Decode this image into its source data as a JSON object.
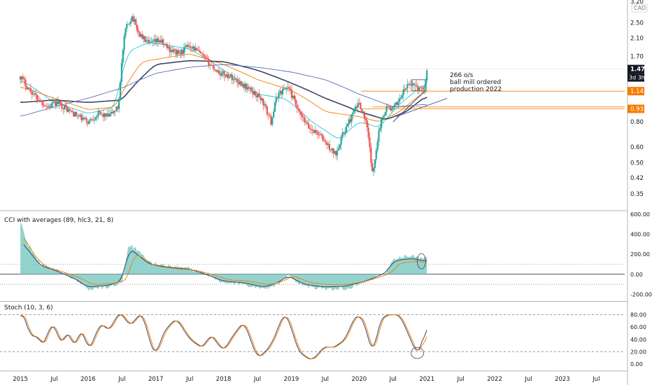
{
  "chart_data": [
    {
      "type": "candlestick",
      "pane": "price",
      "currency": "CAD",
      "y_scale": "log",
      "ylim": [
        0.3,
        3.2
      ],
      "y_ticks": [
        "3.20",
        "2.50",
        "2.10",
        "1.70",
        "1.15",
        "0.80",
        "0.60",
        "0.50",
        "0.42",
        "0.35"
      ],
      "last_price_label": "1.47",
      "countdown_label": "3d 3h",
      "level_labels": [
        {
          "text": "1.14",
          "value": 1.14,
          "color": "#f57c00"
        },
        {
          "text": "0.93",
          "value": 0.93,
          "color": "#f57c00"
        }
      ],
      "annotation_lines": [
        "266 o/s",
        "ball mill ordered",
        "production 2022"
      ],
      "colors": {
        "up": "#26a69a",
        "down": "#ef5350",
        "level": "#f57c00",
        "countdown_bg": "#131722"
      },
      "close_path": [
        [
          2015.0,
          1.35
        ],
        [
          2015.1,
          1.2
        ],
        [
          2015.25,
          1.05
        ],
        [
          2015.4,
          0.95
        ],
        [
          2015.55,
          1.0
        ],
        [
          2015.7,
          0.92
        ],
        [
          2015.85,
          0.85
        ],
        [
          2016.0,
          0.8
        ],
        [
          2016.15,
          0.88
        ],
        [
          2016.3,
          0.85
        ],
        [
          2016.45,
          0.95
        ],
        [
          2016.55,
          2.3
        ],
        [
          2016.65,
          2.7
        ],
        [
          2016.75,
          2.2
        ],
        [
          2016.9,
          1.95
        ],
        [
          2017.05,
          2.05
        ],
        [
          2017.2,
          1.85
        ],
        [
          2017.35,
          1.75
        ],
        [
          2017.5,
          1.95
        ],
        [
          2017.65,
          1.75
        ],
        [
          2017.8,
          1.55
        ],
        [
          2017.95,
          1.4
        ],
        [
          2018.1,
          1.35
        ],
        [
          2018.25,
          1.25
        ],
        [
          2018.4,
          1.15
        ],
        [
          2018.55,
          1.05
        ],
        [
          2018.7,
          0.8
        ],
        [
          2018.8,
          1.1
        ],
        [
          2018.95,
          1.2
        ],
        [
          2019.1,
          0.9
        ],
        [
          2019.25,
          0.75
        ],
        [
          2019.4,
          0.7
        ],
        [
          2019.55,
          0.6
        ],
        [
          2019.65,
          0.55
        ],
        [
          2019.75,
          0.68
        ],
        [
          2019.85,
          0.8
        ],
        [
          2020.0,
          1.0
        ],
        [
          2020.1,
          0.8
        ],
        [
          2020.2,
          0.42
        ],
        [
          2020.3,
          0.75
        ],
        [
          2020.4,
          0.95
        ],
        [
          2020.5,
          0.92
        ],
        [
          2020.6,
          1.05
        ],
        [
          2020.7,
          1.2
        ],
        [
          2020.8,
          1.25
        ],
        [
          2020.9,
          1.15
        ],
        [
          2020.98,
          1.25
        ],
        [
          2021.0,
          1.47
        ]
      ],
      "moving_averages": [
        {
          "color": "#26c6da",
          "points": [
            [
              2015.0,
              1.3
            ],
            [
              2015.5,
              1.0
            ],
            [
              2016.0,
              0.88
            ],
            [
              2016.4,
              0.95
            ],
            [
              2016.6,
              1.8
            ],
            [
              2016.9,
              2.0
            ],
            [
              2017.5,
              1.85
            ],
            [
              2018.0,
              1.45
            ],
            [
              2018.5,
              1.1
            ],
            [
              2018.9,
              1.05
            ],
            [
              2019.3,
              0.8
            ],
            [
              2019.7,
              0.65
            ],
            [
              2020.0,
              0.8
            ],
            [
              2020.3,
              0.75
            ],
            [
              2020.6,
              0.98
            ],
            [
              2021.0,
              1.25
            ]
          ]
        },
        {
          "color": "#f57c00",
          "points": [
            [
              2015.0,
              1.2
            ],
            [
              2015.5,
              1.05
            ],
            [
              2016.0,
              0.92
            ],
            [
              2016.4,
              0.95
            ],
            [
              2016.8,
              1.6
            ],
            [
              2017.5,
              1.75
            ],
            [
              2018.0,
              1.55
            ],
            [
              2018.5,
              1.3
            ],
            [
              2019.0,
              1.15
            ],
            [
              2019.5,
              0.9
            ],
            [
              2020.0,
              0.85
            ],
            [
              2020.3,
              0.8
            ],
            [
              2020.6,
              0.9
            ],
            [
              2021.0,
              1.15
            ]
          ]
        },
        {
          "color": "#3d4460",
          "points": [
            [
              2015.0,
              1.0
            ],
            [
              2015.5,
              1.03
            ],
            [
              2016.0,
              1.0
            ],
            [
              2016.5,
              1.03
            ],
            [
              2017.0,
              1.55
            ],
            [
              2017.5,
              1.62
            ],
            [
              2018.0,
              1.6
            ],
            [
              2018.5,
              1.45
            ],
            [
              2019.0,
              1.25
            ],
            [
              2019.5,
              1.05
            ],
            [
              2020.0,
              0.9
            ],
            [
              2020.4,
              0.82
            ],
            [
              2020.7,
              0.9
            ],
            [
              2021.0,
              1.08
            ]
          ]
        },
        {
          "color": "#5c6bc0",
          "points": [
            [
              2015.0,
              0.85
            ],
            [
              2015.5,
              0.95
            ],
            [
              2016.0,
              1.05
            ],
            [
              2016.5,
              1.18
            ],
            [
              2017.0,
              1.4
            ],
            [
              2017.5,
              1.5
            ],
            [
              2018.0,
              1.55
            ],
            [
              2018.5,
              1.5
            ],
            [
              2019.0,
              1.42
            ],
            [
              2019.5,
              1.3
            ],
            [
              2020.0,
              1.1
            ],
            [
              2020.5,
              0.95
            ],
            [
              2021.0,
              0.98
            ]
          ]
        }
      ],
      "trend_lines": [
        {
          "color": "#3d4460",
          "points": [
            [
              2020.5,
              0.8
            ],
            [
              2020.98,
              1.15
            ]
          ]
        },
        {
          "color": "#5c6bc0",
          "points": [
            [
              2020.55,
              0.85
            ],
            [
              2021.3,
              1.05
            ]
          ]
        }
      ]
    },
    {
      "type": "area",
      "pane": "cci",
      "title": "CCI with averages (89, hlc3, 21, 8)",
      "ylim": [
        -260,
        620
      ],
      "y_ticks": [
        "600.00",
        "400.00",
        "200.00",
        "0.00",
        "-200.00"
      ],
      "y_tick_values": [
        600,
        400,
        200,
        0,
        -200
      ],
      "reference_levels": [
        100,
        -100
      ],
      "colors": {
        "fill": "#80cbc4",
        "fast": "#3d4460",
        "slow": "#f57c00"
      },
      "values": [
        [
          2015.0,
          530
        ],
        [
          2015.1,
          300
        ],
        [
          2015.3,
          100
        ],
        [
          2015.5,
          50
        ],
        [
          2015.8,
          -50
        ],
        [
          2016.0,
          -150
        ],
        [
          2016.3,
          -130
        ],
        [
          2016.5,
          -80
        ],
        [
          2016.6,
          300
        ],
        [
          2016.7,
          250
        ],
        [
          2016.9,
          120
        ],
        [
          2017.2,
          80
        ],
        [
          2017.5,
          60
        ],
        [
          2017.7,
          10
        ],
        [
          2018.0,
          -80
        ],
        [
          2018.3,
          -100
        ],
        [
          2018.6,
          -150
        ],
        [
          2018.8,
          -100
        ],
        [
          2018.95,
          -20
        ],
        [
          2019.2,
          -120
        ],
        [
          2019.5,
          -150
        ],
        [
          2019.8,
          -140
        ],
        [
          2020.0,
          -100
        ],
        [
          2020.2,
          -50
        ],
        [
          2020.4,
          20
        ],
        [
          2020.5,
          150
        ],
        [
          2020.7,
          180
        ],
        [
          2020.85,
          180
        ],
        [
          2020.95,
          150
        ],
        [
          2021.0,
          180
        ]
      ]
    },
    {
      "type": "line",
      "pane": "stochastic",
      "title": "Stoch (10, 3, 6)",
      "ylim": [
        0,
        100
      ],
      "y_ticks": [
        "80.00",
        "60.00",
        "40.00",
        "20.00",
        "0.00"
      ],
      "y_tick_values": [
        80,
        60,
        40,
        20,
        0
      ],
      "reference_levels": [
        80,
        20
      ],
      "colors": {
        "k": "#3d4460",
        "d": "#f57c00"
      },
      "values": [
        [
          2015.0,
          80
        ],
        [
          2015.1,
          75
        ],
        [
          2015.15,
          30
        ],
        [
          2015.25,
          60
        ],
        [
          2015.3,
          20
        ],
        [
          2015.4,
          50
        ],
        [
          2015.5,
          70
        ],
        [
          2015.6,
          25
        ],
        [
          2015.7,
          60
        ],
        [
          2015.8,
          20
        ],
        [
          2015.9,
          65
        ],
        [
          2016.0,
          18
        ],
        [
          2016.1,
          45
        ],
        [
          2016.2,
          70
        ],
        [
          2016.3,
          50
        ],
        [
          2016.4,
          75
        ],
        [
          2016.5,
          85
        ],
        [
          2016.6,
          60
        ],
        [
          2016.8,
          85
        ],
        [
          2016.9,
          40
        ],
        [
          2017.0,
          10
        ],
        [
          2017.1,
          50
        ],
        [
          2017.3,
          75
        ],
        [
          2017.5,
          40
        ],
        [
          2017.7,
          25
        ],
        [
          2017.8,
          50
        ],
        [
          2017.9,
          35
        ],
        [
          2018.0,
          20
        ],
        [
          2018.1,
          40
        ],
        [
          2018.3,
          70
        ],
        [
          2018.5,
          8
        ],
        [
          2018.7,
          30
        ],
        [
          2018.9,
          85
        ],
        [
          2019.0,
          60
        ],
        [
          2019.1,
          20
        ],
        [
          2019.3,
          5
        ],
        [
          2019.5,
          30
        ],
        [
          2019.6,
          25
        ],
        [
          2019.8,
          40
        ],
        [
          2019.9,
          70
        ],
        [
          2020.0,
          82
        ],
        [
          2020.1,
          60
        ],
        [
          2020.2,
          10
        ],
        [
          2020.3,
          70
        ],
        [
          2020.4,
          80
        ],
        [
          2020.6,
          80
        ],
        [
          2020.8,
          30
        ],
        [
          2020.85,
          15
        ],
        [
          2020.9,
          20
        ],
        [
          2021.0,
          70
        ]
      ]
    }
  ],
  "x_axis": {
    "ticks": [
      {
        "label": "2015",
        "x": 2015.0
      },
      {
        "label": "Jul",
        "x": 2015.5
      },
      {
        "label": "2016",
        "x": 2016.0
      },
      {
        "label": "Jul",
        "x": 2016.5
      },
      {
        "label": "2017",
        "x": 2017.0
      },
      {
        "label": "Jul",
        "x": 2017.5
      },
      {
        "label": "2018",
        "x": 2018.0
      },
      {
        "label": "Jul",
        "x": 2018.5
      },
      {
        "label": "2019",
        "x": 2019.0
      },
      {
        "label": "Jul",
        "x": 2019.5
      },
      {
        "label": "2020",
        "x": 2020.0
      },
      {
        "label": "Jul",
        "x": 2020.5
      },
      {
        "label": "2021",
        "x": 2021.0
      },
      {
        "label": "Jul",
        "x": 2021.5
      },
      {
        "label": "2022",
        "x": 2022.0
      },
      {
        "label": "Jul",
        "x": 2022.5
      },
      {
        "label": "2023",
        "x": 2023.0
      },
      {
        "label": "Jul",
        "x": 2023.5
      }
    ]
  }
}
